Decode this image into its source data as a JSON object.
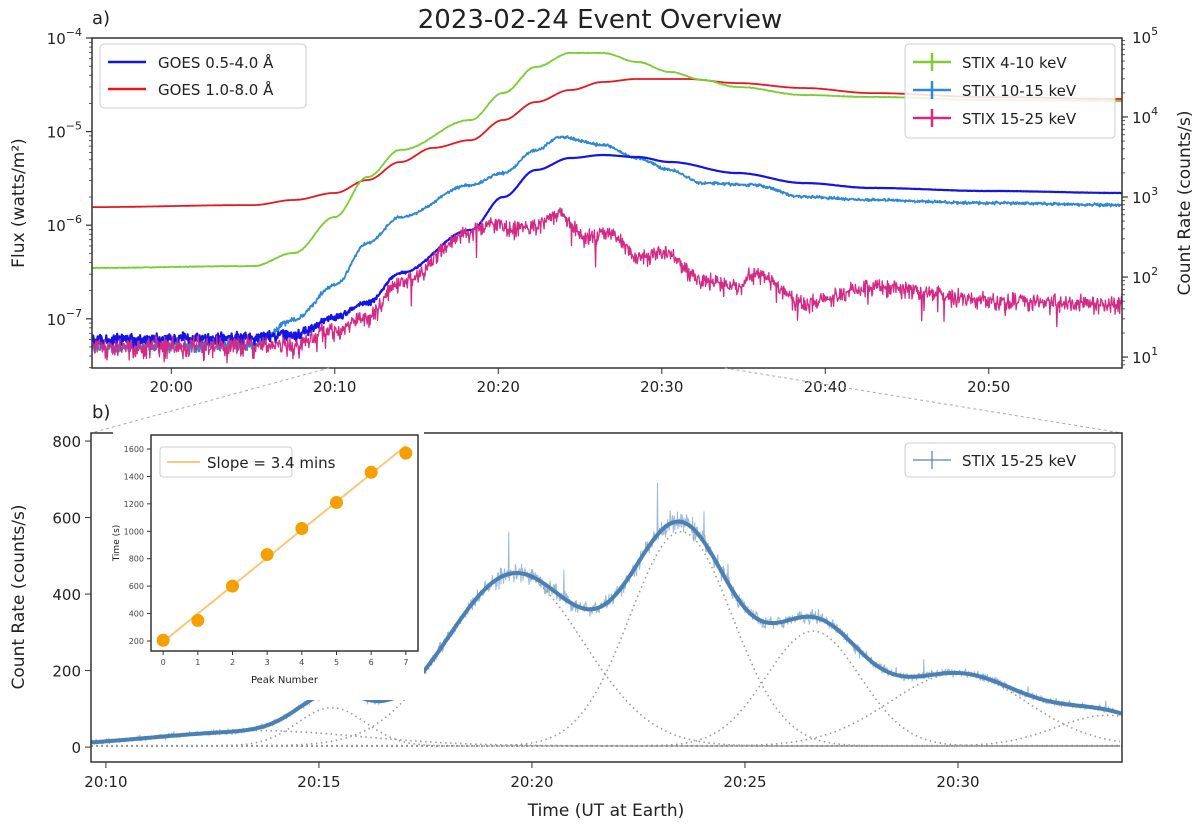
{
  "chart_data": [
    {
      "panel": "a",
      "type": "line",
      "panel_label": "a)",
      "title": "2023-02-24 Event Overview",
      "ylabel_left": "Flux (watts/m²)",
      "ylabel_right": "Count Rate (counts/s)",
      "x_units": "minutes after 20:00 UT",
      "xlim": [
        -4.85,
        58.15
      ],
      "ylim_left": [
        2.98e-08,
        0.0001
      ],
      "ylim_right": [
        7.3,
        97000
      ],
      "yscale": "log",
      "x_ticks": [
        {
          "value": 0,
          "label": "20:00"
        },
        {
          "value": 10,
          "label": "20:10"
        },
        {
          "value": 20,
          "label": "20:20"
        },
        {
          "value": 30,
          "label": "20:30"
        },
        {
          "value": 40,
          "label": "20:40"
        },
        {
          "value": 50,
          "label": "20:50"
        }
      ],
      "y_left_ticks": [
        {
          "value": 0.0001,
          "base": "10",
          "exp": "−4"
        },
        {
          "value": 1e-05,
          "base": "10",
          "exp": "−5"
        },
        {
          "value": 1e-06,
          "base": "10",
          "exp": "−6"
        },
        {
          "value": 1e-07,
          "base": "10",
          "exp": "−7"
        }
      ],
      "y_right_ticks": [
        {
          "value": 100000.0,
          "base": "10",
          "exp": "5"
        },
        {
          "value": 10000.0,
          "base": "10",
          "exp": "4"
        },
        {
          "value": 1000.0,
          "base": "10",
          "exp": "3"
        },
        {
          "value": 100.0,
          "base": "10",
          "exp": "2"
        },
        {
          "value": 10.0,
          "base": "10",
          "exp": "1"
        }
      ],
      "legend_left_position": "top-left",
      "legend_right_position": "top-right",
      "series": [
        {
          "name": "GOES 0.5-4.0 Å",
          "axis": "left",
          "color": "#1414e6",
          "legend": "left",
          "t": [
            -5,
            5,
            7.5,
            10,
            12,
            14,
            18.3,
            20.3,
            22.3,
            24.4,
            26.4,
            28.5,
            30.5,
            34.6,
            38.7,
            42.8,
            50,
            58.2
          ],
          "values": [
            5.94e-08,
            6.24e-08,
            6.71e-08,
            1.04e-07,
            1.48e-07,
            3.08e-07,
            8.89e-07,
            2e-06,
            3.89e-06,
            5.22e-06,
            5.62e-06,
            5.35e-06,
            4.73e-06,
            3.61e-06,
            2.82e-06,
            2.5e-06,
            2.32e-06,
            2.21e-06
          ],
          "noise": {
            "abs": 1.1e-08,
            "rel": 0
          }
        },
        {
          "name": "GOES 1.0-8.0 Å",
          "axis": "left",
          "color": "#e8161c",
          "legend": "left",
          "t": [
            -5,
            5,
            7.5,
            10,
            12,
            14,
            16,
            18.3,
            20.3,
            22.3,
            24.4,
            26.4,
            28.5,
            31.5,
            34.6,
            38.7,
            42.8,
            50,
            58.2
          ],
          "values": [
            1.56e-06,
            1.64e-06,
            1.86e-06,
            2.21e-06,
            3.04e-06,
            4.73e-06,
            6.7e-06,
            8.1e-06,
            1.33e-05,
            2.07e-05,
            2.78e-05,
            3.39e-05,
            3.65e-05,
            3.65e-05,
            3.3e-05,
            2.92e-05,
            2.58e-05,
            2.34e-05,
            2.23e-05
          ],
          "noise": {
            "abs": 0,
            "rel": 0
          }
        },
        {
          "name": "STIX 4-10 keV",
          "axis": "right",
          "color": "#7ccc34",
          "legend": "right",
          "t": [
            -5,
            5,
            7.5,
            10,
            12,
            14,
            18.3,
            20.3,
            22.3,
            24.4,
            26.4,
            28.5,
            30.5,
            32.5,
            34.6,
            38.7,
            42.8,
            50,
            58.2
          ],
          "values": [
            130,
            137,
            200,
            562,
            1778,
            3868,
            9173,
            19953,
            42170,
            63096,
            63096,
            48697,
            36517,
            29004,
            23714,
            18836,
            17783,
            16313,
            15849
          ],
          "noise": {
            "abs": 0,
            "rel": 0.012
          }
        },
        {
          "name": "STIX 10-15 keV",
          "axis": "right",
          "color": "#2f88d0",
          "legend": "right",
          "t": [
            -5,
            5,
            7.5,
            10,
            12,
            14,
            18.3,
            20.3,
            22.3,
            23.8,
            26.4,
            28.5,
            30.5,
            32.5,
            35.6,
            38.7,
            42.8,
            50,
            58.2
          ],
          "values": [
            13.3,
            14.1,
            29,
            79.4,
            266,
            562,
            1413,
            1995,
            3868,
            5623,
            4467,
            3073,
            2175,
            1496,
            1413,
            1000,
            917,
            841,
            794
          ],
          "noise": {
            "abs": 2.5,
            "rel": 0.05
          }
        },
        {
          "name": "STIX 15-25 keV",
          "axis": "right",
          "color": "#d42a86",
          "legend": "right",
          "t": [
            -5,
            7.5,
            10,
            12,
            14,
            18.3,
            19.5,
            20.9,
            22.3,
            23.6,
            25.4,
            26.9,
            28.5,
            30.1,
            32.5,
            34.6,
            35.6,
            38.7,
            42.8,
            50,
            58.2
          ],
          "values": [
            13.3,
            14.1,
            21.8,
            31.6,
            84,
            355,
            487,
            387,
            422,
            631,
            316,
            355,
            178,
            200,
            92,
            75,
            112,
            47,
            75,
            52,
            45
          ],
          "noise": {
            "abs": 3,
            "rel": 0.3
          }
        }
      ]
    },
    {
      "panel": "b",
      "type": "line",
      "panel_label": "b)",
      "xlabel": "Time (UT at Earth)",
      "ylabel": "Count Rate (counts/s)",
      "x_units": "minutes after 20:00 UT",
      "xlim": [
        9.65,
        33.85
      ],
      "ylim": [
        -39,
        821
      ],
      "x_ticks": [
        {
          "value": 10,
          "label": "20:10"
        },
        {
          "value": 15,
          "label": "20:15"
        },
        {
          "value": 20,
          "label": "20:20"
        },
        {
          "value": 25,
          "label": "20:25"
        },
        {
          "value": 30,
          "label": "20:30"
        }
      ],
      "y_ticks": [
        {
          "value": 0,
          "label": "0"
        },
        {
          "value": 200,
          "label": "200"
        },
        {
          "value": 400,
          "label": "400"
        },
        {
          "value": 600,
          "label": "600"
        },
        {
          "value": 800,
          "label": "800"
        }
      ],
      "legend_position": "top-right",
      "series_name": "STIX 15-25 keV",
      "color": "#4a80b4",
      "noise": {
        "abs": 9,
        "rel": 0.06
      },
      "fit_components": [
        {
          "center": 13.5,
          "amplitude": 40,
          "sigma": 2.5
        },
        {
          "center": 15.3,
          "amplitude": 100,
          "sigma": 0.8
        },
        {
          "center": 19.6,
          "amplitude": 450,
          "sigma": 1.6
        },
        {
          "center": 23.5,
          "amplitude": 560,
          "sigma": 1.2
        },
        {
          "center": 26.6,
          "amplitude": 300,
          "sigma": 1.1
        },
        {
          "center": 30.0,
          "amplitude": 190,
          "sigma": 1.6
        },
        {
          "center": 33.5,
          "amplitude": 80,
          "sigma": 1.2
        }
      ],
      "baseline": 3
    },
    {
      "panel": "inset",
      "type": "scatter",
      "xlabel": "Peak Number",
      "ylabel": "Time (s)",
      "xlim": [
        -0.35,
        7.35
      ],
      "ylim": [
        127,
        1702
      ],
      "x_ticks": [
        "0",
        "1",
        "2",
        "3",
        "4",
        "5",
        "6",
        "7"
      ],
      "y_ticks": [
        {
          "value": 200,
          "label": "200"
        },
        {
          "value": 400,
          "label": "400"
        },
        {
          "value": 600,
          "label": "600"
        },
        {
          "value": 800,
          "label": "800"
        },
        {
          "value": 1000,
          "label": "1000"
        },
        {
          "value": 1200,
          "label": "1200"
        },
        {
          "value": 1400,
          "label": "1400"
        },
        {
          "value": 1600,
          "label": "1600"
        }
      ],
      "x": [
        0,
        1,
        2,
        3,
        4,
        5,
        6,
        7
      ],
      "y": [
        205,
        350,
        600,
        830,
        1020,
        1210,
        1430,
        1570
      ],
      "fit": {
        "intercept": 195,
        "slope": 204,
        "label": "Slope = 3.4 mins"
      },
      "point_color": "#f5a000",
      "line_color": "#f8c77a"
    }
  ]
}
